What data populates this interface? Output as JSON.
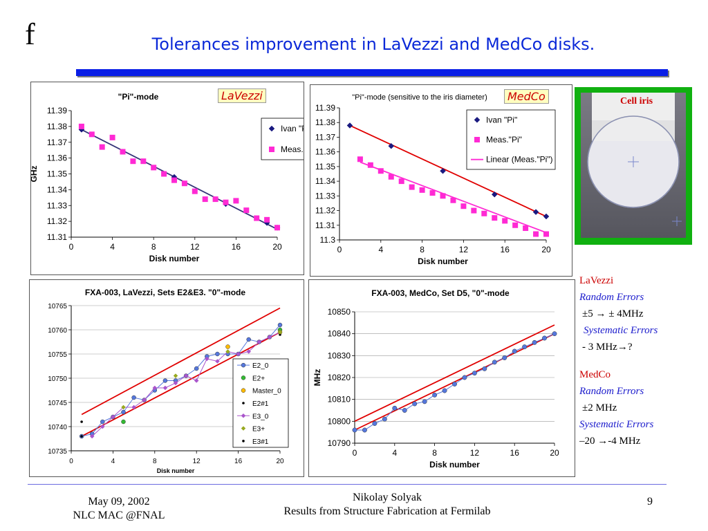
{
  "slide": {
    "glyph": "f",
    "title": "Tolerances improvement in LaVezzi and MedCo disks."
  },
  "tags": {
    "lavezzi": "LaVezzi",
    "medco": "MedCo"
  },
  "iris": {
    "label": "Cell iris"
  },
  "notes": {
    "l1": "LaVezzi",
    "l2": "Random Errors",
    "l3": "±5 → ± 4MHz",
    "l4": "Systematic Errors",
    "l5": "- 3 MHz→?",
    "m1": "MedCo",
    "m2": "Random Errors",
    "m3": "±2 MHz",
    "m4": "Systematic Errors",
    "m5": "–20 →-4 MHz"
  },
  "footer": {
    "date": "May 09, 2002",
    "venue": "NLC MAC @FNAL",
    "author": "Nikolay Solyak",
    "subtitle": "Results from Structure Fabrication at Fermilab",
    "page": "9"
  },
  "colors": {
    "title": "#0a28d8",
    "accent_red": "#cc0000",
    "fit_red": "#e00000",
    "navy": "#1a1a80",
    "magenta": "#ff2ad4"
  },
  "chart_data": [
    {
      "type": "scatter",
      "title": "\"Pi\"-mode",
      "xlabel": "Disk number",
      "ylabel": "GHz",
      "xlim": [
        0,
        20
      ],
      "ylim": [
        11.31,
        11.39
      ],
      "xticks": [
        "0",
        "4",
        "8",
        "12",
        "16",
        "20"
      ],
      "yticks": [
        "11.31",
        "11.32",
        "11.33",
        "11.34",
        "11.35",
        "11.36",
        "11.37",
        "11.38",
        "11.39"
      ],
      "legend": "top-right",
      "series": [
        {
          "name": "Ivan \"Pi\"",
          "marker": "diamond",
          "color": "#1a1a80",
          "x": [
            1,
            5,
            10,
            15,
            19,
            20
          ],
          "y": [
            11.378,
            11.364,
            11.348,
            11.331,
            11.319,
            11.316
          ]
        },
        {
          "name": "Meas.\"Pi\"",
          "marker": "square",
          "color": "#ff2ad4",
          "x": [
            1,
            2,
            3,
            4,
            5,
            6,
            7,
            8,
            9,
            10,
            11,
            12,
            13,
            14,
            15,
            16,
            17,
            18,
            19,
            20
          ],
          "y": [
            11.38,
            11.375,
            11.367,
            11.373,
            11.364,
            11.358,
            11.358,
            11.354,
            11.35,
            11.346,
            11.344,
            11.339,
            11.334,
            11.334,
            11.332,
            11.333,
            11.327,
            11.322,
            11.321,
            11.316
          ]
        }
      ],
      "fit": {
        "x": [
          1,
          20
        ],
        "y": [
          11.378,
          11.315
        ],
        "color": "#333377"
      }
    },
    {
      "type": "scatter",
      "title": "\"Pi\"-mode (sensitive to the iris diameter)",
      "xlabel": "Disk number",
      "ylabel": "GHz",
      "xlim": [
        0,
        20
      ],
      "ylim": [
        11.3,
        11.39
      ],
      "xticks": [
        "0",
        "4",
        "8",
        "12",
        "16",
        "20"
      ],
      "yticks": [
        "11.3",
        "11.31",
        "11.32",
        "11.33",
        "11.34",
        "11.35",
        "11.36",
        "11.37",
        "11.38",
        "11.39"
      ],
      "legend": "top-right",
      "series": [
        {
          "name": "Ivan \"Pi\"",
          "marker": "diamond",
          "color": "#1a1a80",
          "x": [
            1,
            5,
            10,
            15,
            19,
            20
          ],
          "y": [
            11.378,
            11.364,
            11.347,
            11.331,
            11.319,
            11.316
          ]
        },
        {
          "name": "Meas.\"Pi\"",
          "marker": "square",
          "color": "#ff2ad4",
          "x": [
            2,
            3,
            4,
            5,
            6,
            7,
            8,
            9,
            10,
            11,
            12,
            13,
            14,
            15,
            16,
            17,
            18,
            19,
            20
          ],
          "y": [
            11.355,
            11.351,
            11.347,
            11.343,
            11.34,
            11.336,
            11.334,
            11.332,
            11.33,
            11.327,
            11.323,
            11.32,
            11.318,
            11.315,
            11.313,
            11.31,
            11.308,
            11.304,
            11.304
          ]
        },
        {
          "name": "Linear (Meas.\"Pi\")",
          "marker": "line",
          "color": "#ff2ad4",
          "x": [
            2,
            20
          ],
          "y": [
            11.353,
            11.305
          ]
        }
      ],
      "fit": {
        "x": [
          1,
          20
        ],
        "y": [
          11.378,
          11.316
        ],
        "color": "#e00000"
      }
    },
    {
      "type": "line",
      "title": "FXA-003, LaVezzi, Sets E2&E3. \"0\"-mode",
      "xlabel": "Disk number",
      "ylabel": "",
      "xlim": [
        0,
        20
      ],
      "ylim": [
        10735,
        10765
      ],
      "xticks": [
        "0",
        "4",
        "8",
        "12",
        "16",
        "20"
      ],
      "yticks": [
        "10735",
        "10740",
        "10745",
        "10750",
        "10755",
        "10760",
        "10765"
      ],
      "legend": "right",
      "series": [
        {
          "name": "E2_0",
          "marker": "circle",
          "color": "#5577dd",
          "line": true,
          "x": [
            1,
            2,
            3,
            4,
            5,
            6,
            7,
            8,
            9,
            10,
            11,
            12,
            13,
            14,
            15,
            16,
            17,
            18,
            19,
            20
          ],
          "y": [
            10738,
            10738.5,
            10741,
            10742,
            10743,
            10746,
            10745.5,
            10747.5,
            10749.5,
            10749.5,
            10750.5,
            10752,
            10754.5,
            10755,
            10755,
            10755,
            10758,
            10757.5,
            10758.5,
            10761
          ]
        },
        {
          "name": "E2+",
          "marker": "circle",
          "color": "#33bb33",
          "x": [
            5,
            20
          ],
          "y": [
            10741,
            10760
          ]
        },
        {
          "name": "Master_0",
          "marker": "circle",
          "color": "#ffbb00",
          "x": [
            15,
            20
          ],
          "y": [
            10756.5,
            10759.5
          ]
        },
        {
          "name": "E2#1",
          "marker": "dot",
          "color": "#000000",
          "x": [
            1,
            20
          ],
          "y": [
            10741,
            10759
          ]
        },
        {
          "name": "E3_0",
          "marker": "diamond",
          "color": "#aa55cc",
          "line": true,
          "x": [
            2,
            3,
            4,
            5,
            6,
            7,
            8,
            9,
            10,
            11,
            12,
            13,
            14,
            15,
            16,
            17,
            18,
            19,
            20
          ],
          "y": [
            10738,
            10740,
            10742,
            10744,
            10744,
            10745.5,
            10748,
            10748,
            10749,
            10750.5,
            10749.5,
            10754,
            10753.5,
            10755.5,
            10755,
            10755.5,
            10757.5,
            10758.5,
            10759.5
          ]
        },
        {
          "name": "E3+",
          "marker": "diamond",
          "color": "#99aa22",
          "x": [
            5,
            10,
            15,
            20
          ],
          "y": [
            10744,
            10750.5,
            10755.5,
            10759.5
          ]
        },
        {
          "name": "E3#1",
          "marker": "dot",
          "color": "#000000",
          "x": [
            1
          ],
          "y": [
            10738
          ]
        }
      ],
      "fits": [
        {
          "x": [
            1,
            20
          ],
          "y": [
            10742.5,
            10764.5
          ],
          "color": "#e00000"
        },
        {
          "x": [
            1,
            20
          ],
          "y": [
            10738,
            10759.5
          ],
          "color": "#e00000"
        }
      ]
    },
    {
      "type": "line",
      "title": "FXA-003, MedCo, Set D5, \"0\"-mode",
      "xlabel": "Disk number",
      "ylabel": "MHz",
      "xlim": [
        0,
        20
      ],
      "ylim": [
        10790,
        10850
      ],
      "xticks": [
        "0",
        "4",
        "8",
        "12",
        "16",
        "20"
      ],
      "yticks": [
        "10790",
        "10800",
        "10810",
        "10820",
        "10830",
        "10840",
        "10850"
      ],
      "series": [
        {
          "name": "D5",
          "marker": "circle",
          "color": "#5577dd",
          "line": true,
          "x": [
            0,
            1,
            2,
            3,
            4,
            5,
            6,
            7,
            8,
            9,
            10,
            11,
            12,
            13,
            14,
            15,
            16,
            17,
            18,
            19,
            20
          ],
          "y": [
            10796,
            10796,
            10799,
            10801,
            10806,
            10805,
            10808,
            10809,
            10812,
            10814,
            10817,
            10820,
            10822,
            10824,
            10827,
            10829,
            10832,
            10834,
            10836,
            10838,
            10840
          ]
        }
      ],
      "fits": [
        {
          "x": [
            0,
            20
          ],
          "y": [
            10800,
            10844
          ],
          "color": "#e00000"
        },
        {
          "x": [
            0,
            20
          ],
          "y": [
            10796,
            10840
          ],
          "color": "#e00000"
        }
      ]
    }
  ]
}
